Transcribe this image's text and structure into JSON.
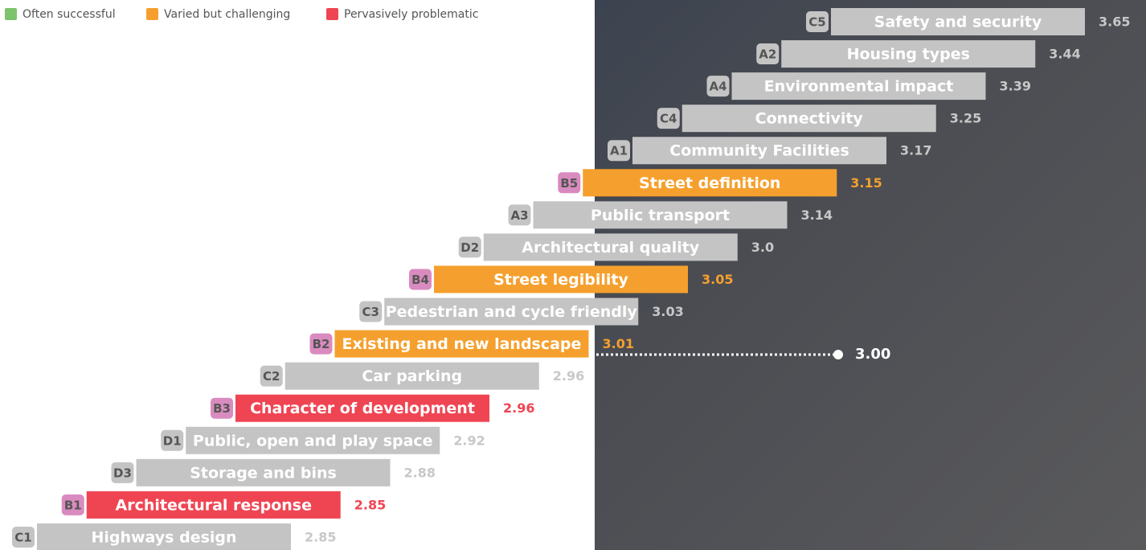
{
  "chart_data": {
    "type": "staircase-bar",
    "legend": [
      {
        "name": "Often successful",
        "color": "#7dc36b"
      },
      {
        "name": "Varied but challenging",
        "color": "#f5a02e"
      },
      {
        "name": "Pervasively problematic",
        "color": "#ef4553"
      }
    ],
    "codes": [
      "C5",
      "A2",
      "A4",
      "C4",
      "A1",
      "B5",
      "A3",
      "D2",
      "B4",
      "C3",
      "B2",
      "C2",
      "B3",
      "D1",
      "D3",
      "B1",
      "C1"
    ],
    "categories": [
      "Safety and security",
      "Housing types",
      "Environmental impact",
      "Connectivity",
      "Community Facilities",
      "Street definition",
      "Public transport",
      "Architectural quality",
      "Street legibility",
      "Pedestrian and cycle friendly",
      "Existing and new landscape",
      "Car parking",
      "Character of development",
      "Public, open and play space",
      "Storage and bins",
      "Architectural response",
      "Highways design"
    ],
    "values": [
      3.65,
      3.44,
      3.39,
      3.25,
      3.17,
      3.15,
      3.14,
      3.0,
      3.05,
      3.03,
      3.01,
      2.96,
      2.96,
      2.92,
      2.88,
      2.85,
      2.85
    ],
    "value_labels": [
      "3.65",
      "3.44",
      "3.39",
      "3.25",
      "3.17",
      "3.15",
      "3.14",
      "3.0",
      "3.05",
      "3.03",
      "3.01",
      "2.96",
      "2.96",
      "2.92",
      "2.88",
      "2.85",
      "2.85"
    ],
    "colors": [
      "#c4c4c4",
      "#c4c4c4",
      "#c4c4c4",
      "#c4c4c4",
      "#c4c4c4",
      "#f5a02e",
      "#c4c4c4",
      "#c4c4c4",
      "#f5a02e",
      "#c4c4c4",
      "#f5a02e",
      "#c4c4c4",
      "#ef4553",
      "#c4c4c4",
      "#c4c4c4",
      "#ef4553",
      "#c4c4c4"
    ],
    "badge_colors": [
      "#c4c4c4",
      "#c4c4c4",
      "#c4c4c4",
      "#c4c4c4",
      "#c4c4c4",
      "#d98bbf",
      "#c4c4c4",
      "#c4c4c4",
      "#d98bbf",
      "#c4c4c4",
      "#d98bbf",
      "#c4c4c4",
      "#d98bbf",
      "#c4c4c4",
      "#c4c4c4",
      "#d98bbf",
      "#c4c4c4"
    ],
    "reference": {
      "value": 3,
      "label": "3.00"
    }
  }
}
